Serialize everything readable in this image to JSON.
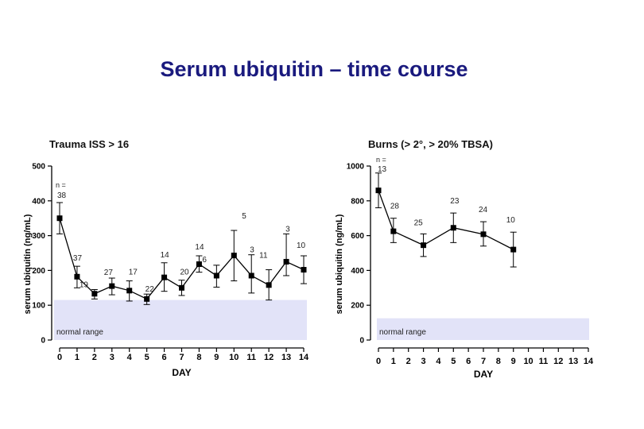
{
  "page": {
    "title": "Serum ubiquitin – time course"
  },
  "chart_data": [
    {
      "type": "line",
      "title": "Trauma ISS > 16",
      "xlabel": "DAY",
      "ylabel": "serum ubiquitin (ng/mL)",
      "xlim": [
        0,
        14
      ],
      "ylim": [
        0,
        500
      ],
      "yticks": [
        0,
        100,
        200,
        300,
        400,
        500
      ],
      "xticks": [
        0,
        1,
        2,
        3,
        4,
        5,
        6,
        7,
        8,
        9,
        10,
        11,
        12,
        13,
        14
      ],
      "grid": false,
      "normal_range": {
        "label": "normal range",
        "from": 0,
        "to": 115
      },
      "n_header": "n =",
      "series": [
        {
          "color": "#000000",
          "x": [
            0,
            1,
            2,
            3,
            4,
            5,
            6,
            7,
            8,
            9,
            10,
            11,
            12,
            13,
            14
          ],
          "y": [
            350,
            182,
            133,
            155,
            142,
            118,
            180,
            150,
            218,
            185,
            243,
            185,
            158,
            225,
            202
          ],
          "err_low": [
            305,
            150,
            118,
            130,
            112,
            102,
            140,
            128,
            195,
            152,
            170,
            135,
            115,
            185,
            162
          ],
          "err_high": [
            395,
            212,
            145,
            178,
            170,
            132,
            222,
            172,
            242,
            215,
            315,
            245,
            202,
            305,
            242
          ],
          "n": [
            "38",
            "37",
            "19",
            "27",
            "17",
            "22",
            "14",
            "20",
            "14",
            "6",
            "5",
            "3",
            "11",
            "3",
            "10"
          ]
        }
      ]
    },
    {
      "type": "line",
      "title": "Burns (> 2°, > 20% TBSA)",
      "xlabel": "DAY",
      "ylabel": "serum ubiquitin (ng/mL)",
      "xlim": [
        0,
        14
      ],
      "ylim": [
        0,
        1000
      ],
      "yticks": [
        0,
        200,
        400,
        600,
        800,
        1000
      ],
      "xticks": [
        0,
        1,
        2,
        3,
        4,
        5,
        6,
        7,
        8,
        9,
        10,
        11,
        12,
        13,
        14
      ],
      "grid": false,
      "normal_range": {
        "label": "normal range",
        "from": 0,
        "to": 125
      },
      "n_header": "n =",
      "series": [
        {
          "color": "#000000",
          "x": [
            0,
            1,
            3,
            5,
            7,
            9
          ],
          "y": [
            860,
            625,
            545,
            645,
            608,
            520
          ],
          "err_low": [
            760,
            560,
            480,
            560,
            540,
            420
          ],
          "err_high": [
            960,
            700,
            610,
            730,
            680,
            620
          ],
          "n": [
            "13",
            "28",
            "25",
            "23",
            "24",
            "10"
          ]
        }
      ]
    }
  ]
}
